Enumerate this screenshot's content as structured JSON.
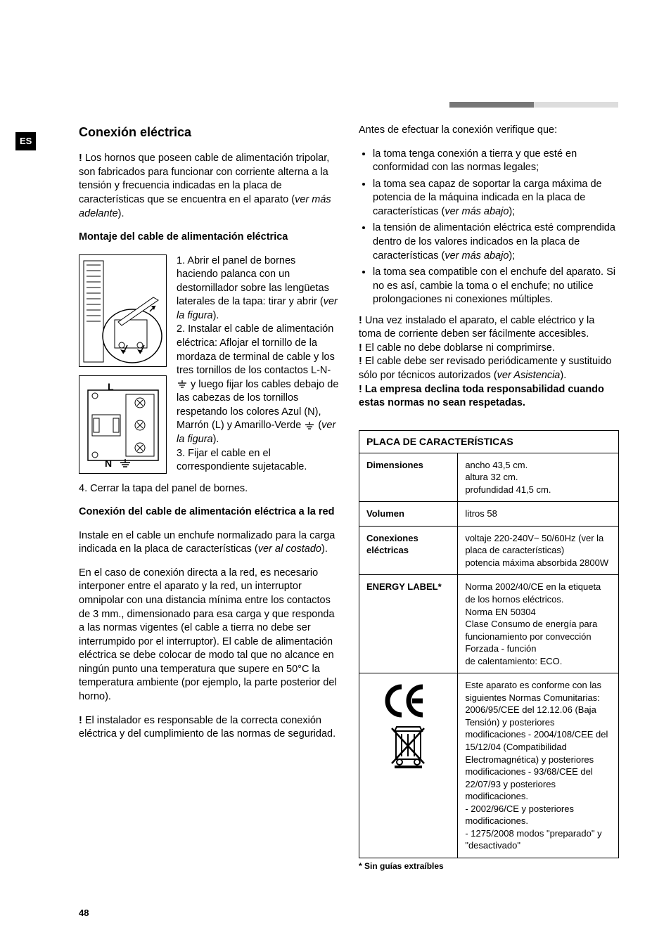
{
  "lang_badge": "ES",
  "page_number": "48",
  "heading": "Conexión eléctrica",
  "left": {
    "intro_prefix": "! ",
    "intro": "Los hornos que poseen cable de alimentación tripolar, son fabricados para funcionar con corriente alterna a la tensión y frecuencia indicadas en la placa de características que se encuentra en el aparato (",
    "intro_italic": "ver más adelante",
    "intro_close": ").",
    "sub1": "Montaje del cable de alimentación eléctrica",
    "step1_a": "1. Abrir el panel de bornes haciendo palanca con un destornillador sobre las lengüetas laterales de la tapa: tirar y abrir (",
    "step1_italic": "ver la figura",
    "step1_b": ").",
    "step2_a": "2. Instalar el cable de alimentación eléctrica: Aflojar el tornillo de la mordaza de terminal de cable y los tres tornillos de los contactos L-N-",
    "step2_b": " y luego fijar los cables debajo de las cabezas de los tornillos respetando los colores Azul (N), Marrón (L) y Amarillo-Verde ",
    "step2_c": " (",
    "step2_italic": "ver la figura",
    "step2_d": ").",
    "step3": "3. Fijar el cable en el correspondiente sujetacable.",
    "step4": "4. Cerrar la tapa del panel de bornes.",
    "sub2": "Conexión del cable de alimentación eléctrica a la red",
    "p2a": "Instale en el cable un enchufe normalizado para la carga indicada en la placa de características (",
    "p2a_italic": "ver al costado",
    "p2a_close": ").",
    "p2b": "En el caso de conexión directa a la red, es necesario interponer entre el aparato y la red, un interruptor omnipolar con una distancia mínima entre los contactos de 3 mm., dimensionado para esa carga y que responda a las normas vigentes (el cable a tierra no debe ser interrumpido por el interruptor). El cable de alimentación eléctrica se debe colocar de modo tal que no alcance en ningún punto una temperatura que supere en 50°C la temperatura ambiente (por ejemplo, la parte posterior del horno).",
    "p3_prefix": "! ",
    "p3": "El instalador es responsable de la correcta conexión eléctrica y del cumplimiento de las normas de seguridad.",
    "fig2_L": "L",
    "fig2_N": "N"
  },
  "right": {
    "lead": "Antes de efectuar la conexión verifique que:",
    "bullets": [
      "la toma tenga conexión a tierra y que esté en conformidad con las normas legales;",
      "la toma sea capaz de soportar la carga máxima de potencia de la máquina indicada en la placa de características (",
      "la tensión de alimentación eléctrica esté comprendida dentro de los valores indicados en la placa de características (",
      "la toma sea compatible con el enchufe del aparato. Si no es así, cambie la toma o el enchufe; no utilice prolongaciones ni conexiones múltiples."
    ],
    "b2_italic": "ver más abajo",
    "b2_close": ");",
    "b3_italic": "ver más abajo",
    "b3_close": ");",
    "w1_prefix": "! ",
    "w1": "Una vez instalado el aparato, el cable eléctrico y la toma de corriente deben ser fácilmente accesibles.",
    "w2_prefix": "! ",
    "w2": "El cable no debe doblarse ni comprimirse.",
    "w3_prefix": "! ",
    "w3a": "El cable debe ser revisado periódicamente y sustituido sólo por técnicos autorizados (",
    "w3_italic": "ver Asistencia",
    "w3b": ").",
    "w4_prefix": "! ",
    "w4": "La empresa declina toda responsabilidad cuando estas normas no sean respetadas."
  },
  "table": {
    "title": "PLACA DE CARACTERÍSTICAS",
    "rows": [
      {
        "label": "Dimensiones",
        "value": "ancho 43,5 cm.\naltura 32 cm.\nprofundidad 41,5 cm."
      },
      {
        "label": "Volumen",
        "value": "litros 58"
      },
      {
        "label": "Conexiones eléctricas",
        "value": "voltaje 220-240V~ 50/60Hz (ver la placa de características)\npotencia máxima absorbida 2800W"
      },
      {
        "label": "ENERGY LABEL*",
        "value": "Norma 2002/40/CE en la etiqueta de los hornos eléctricos.\nNorma EN 50304\nClase Consumo de energía para funcionamiento por convección Forzada - función\nde calentamiento: ECO."
      },
      {
        "label": "__CE__",
        "value": "Este aparato es conforme con las siguientes Normas Comunitarias: 2006/95/CEE del 12.12.06 (Baja Tensión) y posteriores modificaciones - 2004/108/CEE del 15/12/04 (Compatibilidad Electromagnética) y posteriores modificaciones - 93/68/CEE del 22/07/93 y posteriores modificaciones.\n- 2002/96/CE y posteriores modificaciones.\n- 1275/2008 modos \"preparado\" y \"desactivado\""
      }
    ],
    "footnote": "* Sin guías extraíbles"
  },
  "colors": {
    "text": "#000000",
    "bg": "#ffffff",
    "bar_dark": "#777777",
    "bar_light": "#dddddd"
  }
}
